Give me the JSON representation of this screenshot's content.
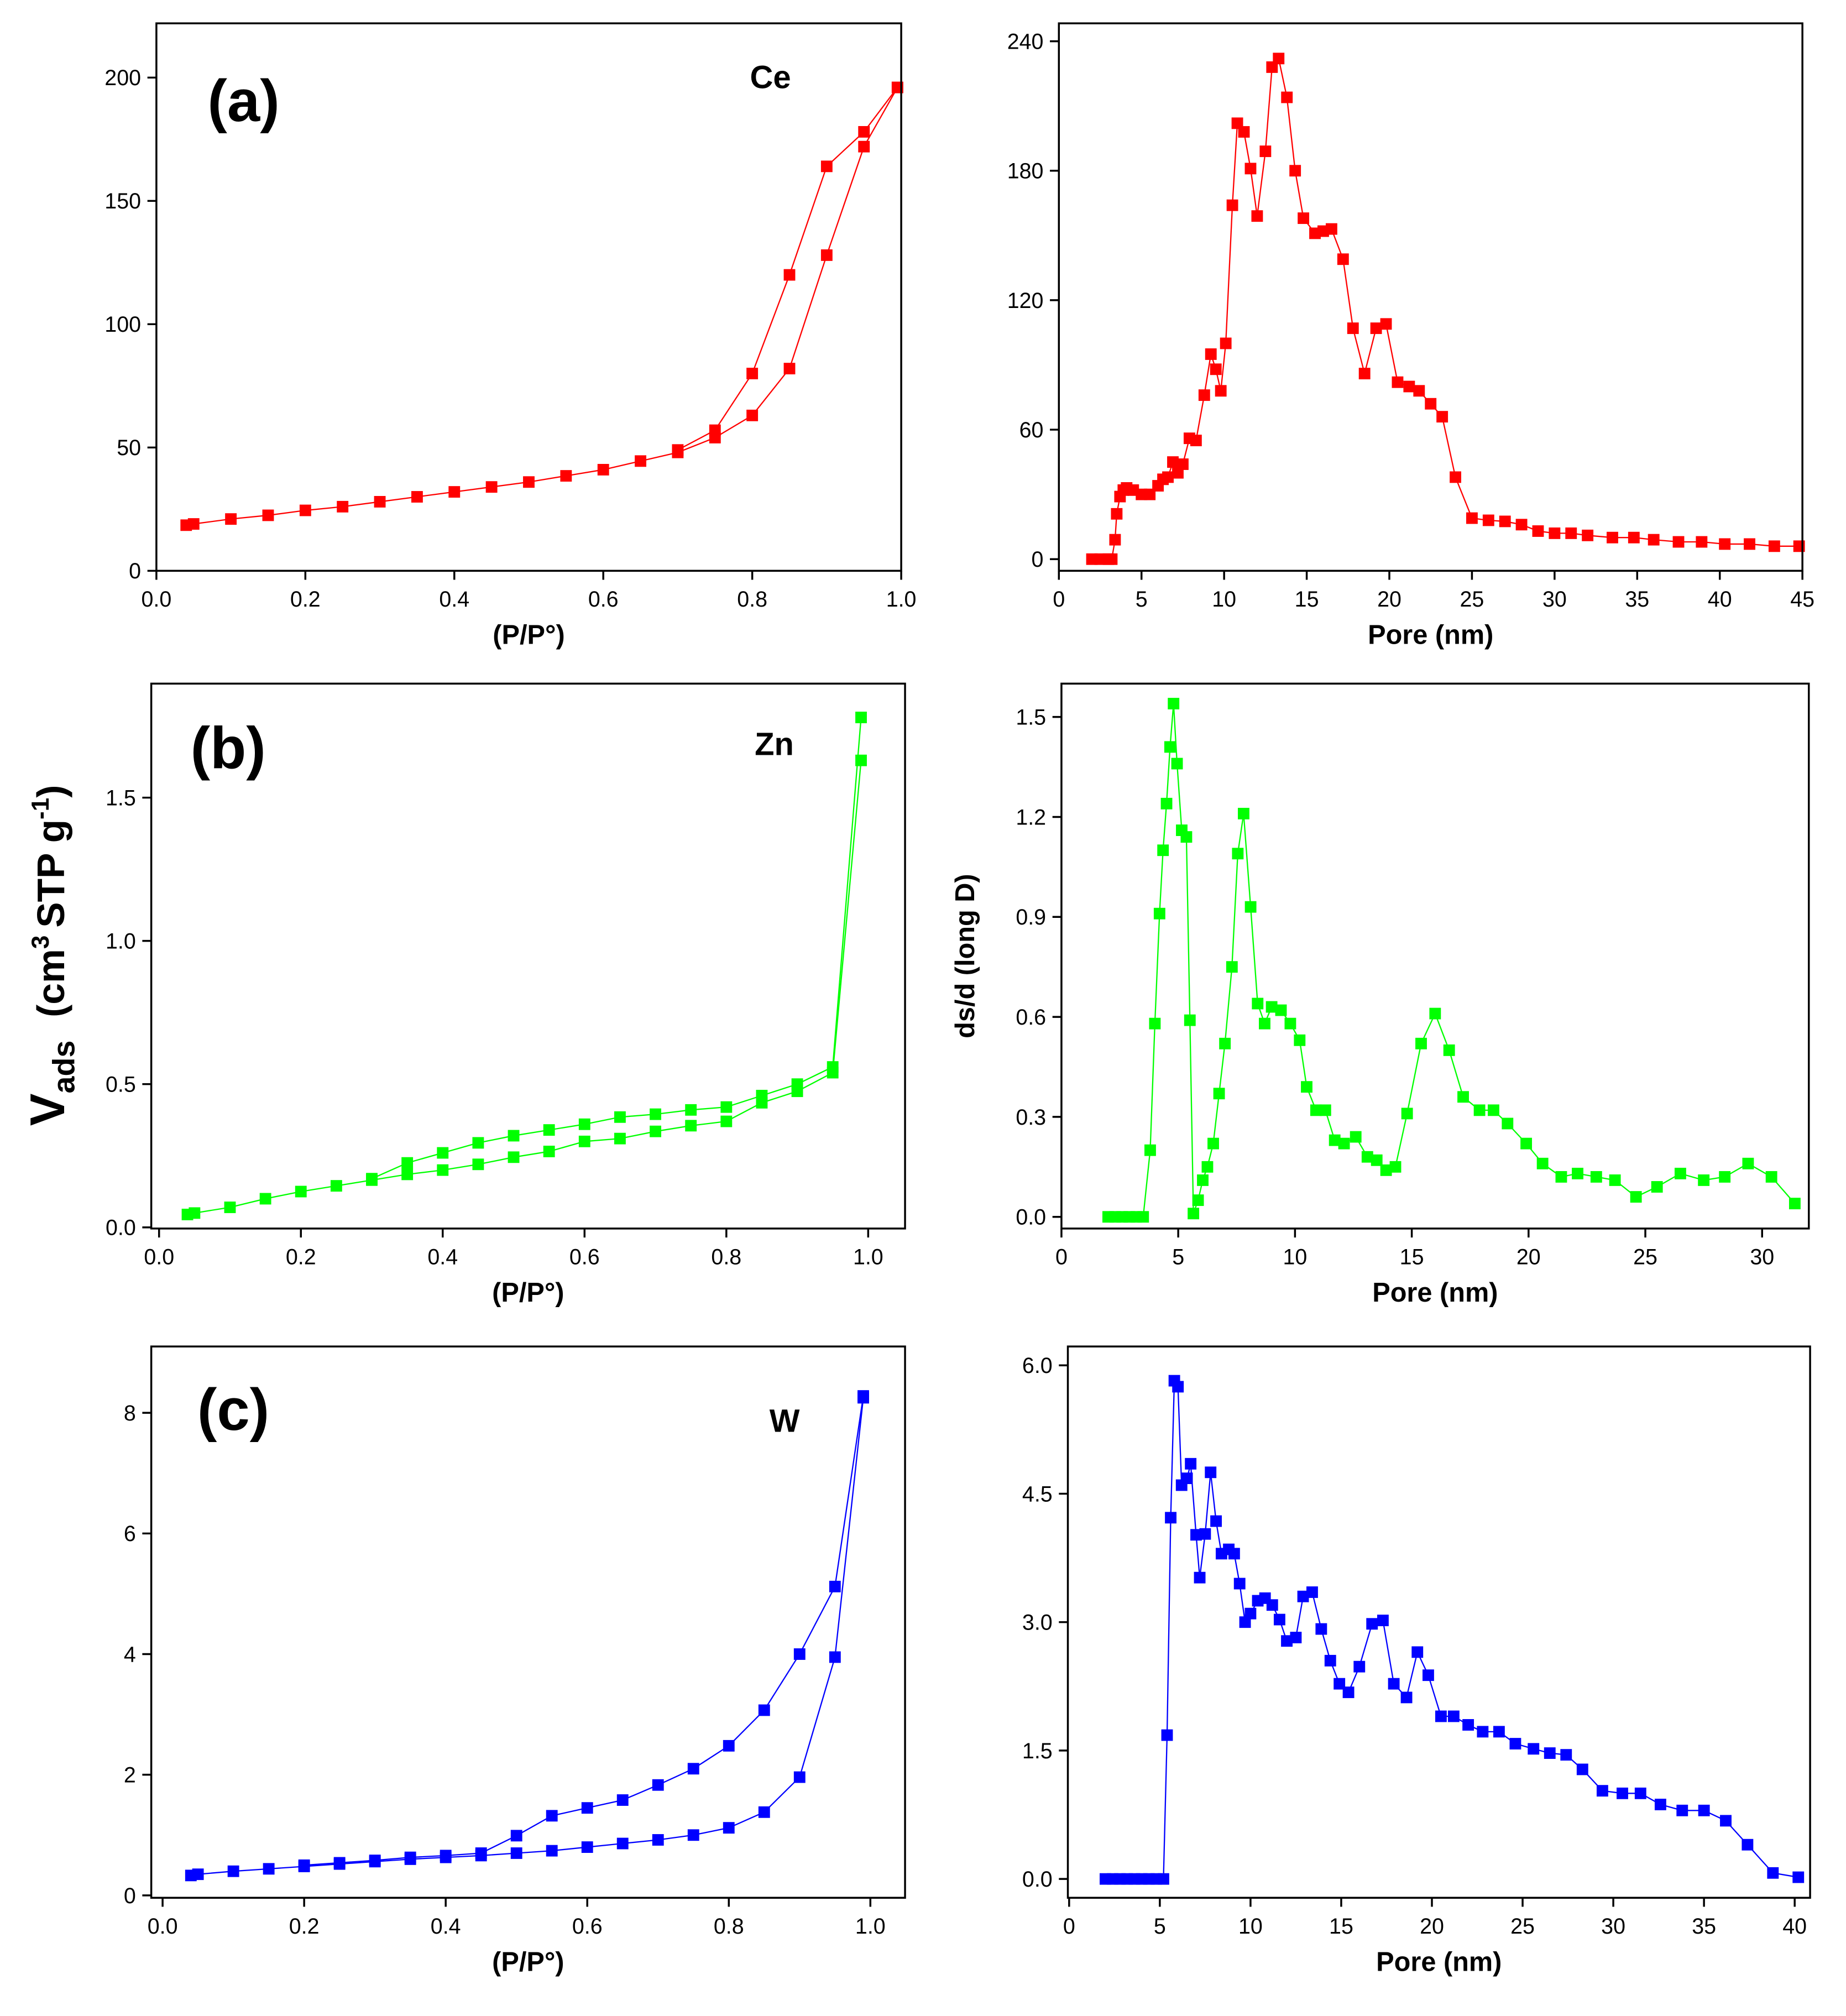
{
  "chart_data": [
    {
      "type": "line",
      "xlabel": "(P/P°)",
      "annotations": [
        "(a)",
        "Ce"
      ],
      "xlim": [
        0,
        1
      ],
      "ylim": [
        0,
        222
      ],
      "xticks": [
        {
          "value": 0,
          "label": "0.0"
        },
        0.2,
        0.4,
        0.6,
        0.8,
        {
          "value": 1,
          "label": "1.0"
        }
      ],
      "yticks": [
        0,
        50,
        100,
        150,
        200
      ],
      "series": [
        {
          "color": "#ff0000",
          "x": [
            0.04,
            0.05,
            0.1,
            0.15,
            0.2,
            0.25,
            0.3,
            0.35,
            0.4,
            0.45,
            0.5,
            0.55,
            0.6,
            0.65,
            0.7,
            0.75,
            0.8,
            0.85,
            0.9,
            0.95,
            0.995
          ],
          "values": [
            18.5,
            19,
            21,
            22.5,
            24.5,
            26,
            28,
            30,
            32,
            34,
            36,
            38.5,
            41,
            44.5,
            48,
            54,
            63,
            82,
            128,
            172,
            196
          ]
        },
        {
          "color": "#ff0000",
          "x": [
            0.995,
            0.95,
            0.9,
            0.85,
            0.8,
            0.75,
            0.7
          ],
          "values": [
            196,
            178,
            164,
            120,
            80,
            57,
            49
          ]
        }
      ]
    },
    {
      "type": "line",
      "xlabel": "Pore (nm)",
      "annotations": [],
      "xlim": [
        0,
        45
      ],
      "ylim": [
        -5.4,
        248.3
      ],
      "xticks": [
        0,
        5,
        10,
        15,
        20,
        25,
        30,
        35,
        40,
        45
      ],
      "yticks": [
        0,
        60,
        120,
        180,
        240
      ],
      "series": [
        {
          "color": "#ff0000",
          "x": [
            2,
            2.5,
            3,
            3.2,
            3.4,
            3.5,
            3.7,
            3.9,
            4.1,
            4.5,
            5,
            5.5,
            6,
            6.3,
            6.6,
            6.9,
            7.2,
            7.5,
            7.9,
            8.3,
            8.8,
            9.2,
            9.5,
            9.8,
            10.1,
            10.5,
            10.8,
            11.2,
            11.6,
            12.0,
            12.5,
            12.9,
            13.3,
            13.8,
            14.3,
            14.8,
            15.5,
            16.0,
            16.5,
            17.2,
            17.8,
            18.5,
            19.2,
            19.8,
            20.5,
            21.2,
            21.8,
            22.5,
            23.2,
            24.0,
            25.0,
            26.0,
            27.0,
            28.0,
            29.0,
            30.0,
            31.0,
            32.0,
            33.5,
            34.8,
            36.0,
            37.5,
            38.9,
            40.3,
            41.8,
            43.3,
            44.8
          ],
          "values": [
            0,
            0,
            0,
            0,
            9,
            21,
            29,
            32,
            33,
            32,
            30,
            30,
            34,
            37,
            38,
            45,
            40,
            44,
            56,
            55,
            76,
            95,
            88,
            78,
            100,
            164,
            202,
            198,
            181,
            159,
            189,
            228,
            232,
            214,
            180,
            158,
            151,
            152,
            153,
            139,
            107,
            86,
            107,
            109,
            82,
            80,
            78,
            72,
            66,
            38,
            19,
            18,
            17.5,
            16,
            13,
            12,
            12,
            11,
            10,
            10,
            9,
            8,
            8,
            7,
            7,
            6,
            6
          ]
        }
      ]
    },
    {
      "type": "line",
      "xlabel": "(P/P°)",
      "ylabel": [
        "V",
        "ads",
        "(cm",
        "3",
        "STP g",
        "-1",
        ")"
      ],
      "annotations": [
        "(b)",
        "Zn"
      ],
      "xlim": [
        -0.011,
        1.052
      ],
      "ylim": [
        -0.004,
        1.898
      ],
      "xticks": [
        {
          "value": 0,
          "label": "0.0"
        },
        0.2,
        0.4,
        0.6,
        0.8,
        {
          "value": 1,
          "label": "1.0"
        }
      ],
      "yticks": [
        {
          "value": 0,
          "label": "0.0"
        },
        0.5,
        {
          "value": 1,
          "label": "1.0"
        },
        1.5
      ],
      "series": [
        {
          "color": "#00ff00",
          "x": [
            0.04,
            0.05,
            0.1,
            0.15,
            0.2,
            0.25,
            0.3,
            0.35,
            0.4,
            0.45,
            0.5,
            0.55,
            0.6,
            0.65,
            0.7,
            0.75,
            0.8,
            0.85,
            0.9,
            0.95,
            0.99
          ],
          "values": [
            0.045,
            0.05,
            0.07,
            0.1,
            0.125,
            0.145,
            0.165,
            0.185,
            0.2,
            0.22,
            0.245,
            0.265,
            0.3,
            0.31,
            0.335,
            0.355,
            0.37,
            0.435,
            0.475,
            0.54,
            1.63
          ]
        },
        {
          "color": "#00ff00",
          "x": [
            0.99,
            0.95,
            0.9,
            0.85,
            0.8,
            0.75,
            0.7,
            0.65,
            0.6,
            0.55,
            0.5,
            0.45,
            0.4,
            0.35,
            0.3
          ],
          "values": [
            1.78,
            0.56,
            0.5,
            0.46,
            0.42,
            0.41,
            0.395,
            0.385,
            0.36,
            0.34,
            0.32,
            0.295,
            0.26,
            0.225,
            0.17
          ]
        }
      ]
    },
    {
      "type": "line",
      "xlabel": "Pore (nm)",
      "ylabel_text": "ds/d (long D)",
      "annotations": [],
      "xlim": [
        0,
        32
      ],
      "ylim": [
        -0.035,
        1.6
      ],
      "xticks": [
        0,
        5,
        10,
        15,
        20,
        25,
        30
      ],
      "yticks": [
        {
          "value": 0,
          "label": "0.0"
        },
        0.3,
        0.6,
        0.9,
        1.2,
        1.5
      ],
      "series": [
        {
          "color": "#00ff00",
          "x": [
            2,
            2.3,
            2.6,
            2.9,
            3.2,
            3.5,
            3.8,
            4.0,
            4.2,
            4.35,
            4.5,
            4.65,
            4.8,
            4.95,
            5.15,
            5.35,
            5.5,
            5.65,
            5.85,
            6.05,
            6.25,
            6.5,
            6.75,
            7.0,
            7.3,
            7.55,
            7.8,
            8.1,
            8.4,
            8.7,
            9.0,
            9.4,
            9.8,
            10.2,
            10.5,
            10.9,
            11.3,
            11.7,
            12.1,
            12.6,
            13.1,
            13.5,
            13.9,
            14.3,
            14.8,
            15.4,
            16.0,
            16.6,
            17.2,
            17.9,
            18.5,
            19.1,
            19.9,
            20.6,
            21.4,
            22.1,
            22.9,
            23.7,
            24.6,
            25.5,
            26.5,
            27.5,
            28.4,
            29.4,
            30.4,
            31.4
          ],
          "values": [
            0,
            0,
            0,
            0,
            0,
            0,
            0.2,
            0.58,
            0.91,
            1.1,
            1.24,
            1.41,
            1.54,
            1.36,
            1.16,
            1.14,
            0.59,
            0.01,
            0.05,
            0.11,
            0.15,
            0.22,
            0.37,
            0.52,
            0.75,
            1.09,
            1.21,
            0.93,
            0.64,
            0.58,
            0.63,
            0.62,
            0.58,
            0.53,
            0.39,
            0.32,
            0.32,
            0.23,
            0.22,
            0.24,
            0.18,
            0.17,
            0.14,
            0.15,
            0.31,
            0.52,
            0.61,
            0.5,
            0.36,
            0.32,
            0.32,
            0.28,
            0.22,
            0.16,
            0.12,
            0.13,
            0.12,
            0.11,
            0.06,
            0.09,
            0.13,
            0.11,
            0.12,
            0.16,
            0.12,
            0.04
          ]
        }
      ]
    },
    {
      "type": "line",
      "xlabel": "(P/P°)",
      "annotations": [
        "(c)",
        "W"
      ],
      "xlim": [
        -0.016,
        1.049
      ],
      "ylim": [
        -0.04,
        9.1
      ],
      "xticks": [
        {
          "value": 0,
          "label": "0.0"
        },
        0.2,
        0.4,
        0.6,
        0.8,
        {
          "value": 1,
          "label": "1.0"
        }
      ],
      "yticks": [
        0,
        2,
        4,
        6,
        8
      ],
      "series": [
        {
          "color": "#0000ff",
          "x": [
            0.04,
            0.05,
            0.1,
            0.15,
            0.2,
            0.25,
            0.3,
            0.35,
            0.4,
            0.45,
            0.5,
            0.55,
            0.6,
            0.65,
            0.7,
            0.75,
            0.8,
            0.85,
            0.9,
            0.95,
            0.99
          ],
          "values": [
            0.33,
            0.35,
            0.4,
            0.44,
            0.48,
            0.52,
            0.56,
            0.6,
            0.63,
            0.66,
            0.7,
            0.74,
            0.8,
            0.86,
            0.92,
            1.0,
            1.12,
            1.38,
            1.96,
            3.95,
            8.25
          ]
        },
        {
          "color": "#0000ff",
          "x": [
            0.99,
            0.95,
            0.9,
            0.85,
            0.8,
            0.75,
            0.7,
            0.65,
            0.6,
            0.55,
            0.5,
            0.45,
            0.4,
            0.35,
            0.3,
            0.25,
            0.2
          ],
          "values": [
            8.28,
            5.12,
            4.0,
            3.07,
            2.48,
            2.1,
            1.83,
            1.58,
            1.45,
            1.32,
            0.99,
            0.7,
            0.66,
            0.63,
            0.58,
            0.54,
            0.5
          ]
        }
      ]
    },
    {
      "type": "line",
      "xlabel": "Pore (nm)",
      "annotations": [],
      "xlim": [
        -0.07,
        40.85
      ],
      "ylim": [
        -0.22,
        6.22
      ],
      "xticks": [
        0,
        5,
        10,
        15,
        20,
        25,
        30,
        35,
        40
      ],
      "yticks": [
        {
          "value": 0,
          "label": "0.0"
        },
        1.5,
        {
          "value": 3,
          "label": "3.0"
        },
        4.5,
        {
          "value": 6,
          "label": "6.0"
        }
      ],
      "series": [
        {
          "color": "#0000ff",
          "x": [
            2,
            2.4,
            2.8,
            3.2,
            3.6,
            4,
            4.4,
            4.8,
            5.2,
            5.4,
            5.6,
            5.8,
            6.0,
            6.2,
            6.5,
            6.7,
            7.0,
            7.2,
            7.5,
            7.8,
            8.1,
            8.4,
            8.8,
            9.1,
            9.4,
            9.7,
            10.0,
            10.4,
            10.8,
            11.2,
            11.6,
            12.0,
            12.5,
            12.9,
            13.4,
            13.9,
            14.4,
            14.9,
            15.4,
            16.0,
            16.7,
            17.3,
            17.9,
            18.6,
            19.2,
            19.8,
            20.5,
            21.2,
            22.0,
            22.8,
            23.7,
            24.6,
            25.6,
            26.5,
            27.4,
            28.3,
            29.4,
            30.5,
            31.5,
            32.6,
            33.8,
            35.0,
            36.2,
            37.4,
            38.8,
            40.2
          ],
          "values": [
            0,
            0,
            0,
            0,
            0,
            0,
            0,
            0,
            0,
            1.68,
            4.22,
            5.82,
            5.75,
            4.6,
            4.68,
            4.85,
            4.02,
            3.52,
            4.03,
            4.75,
            4.18,
            3.8,
            3.85,
            3.8,
            3.45,
            3.0,
            3.1,
            3.25,
            3.28,
            3.2,
            3.03,
            2.78,
            2.82,
            3.3,
            3.35,
            2.92,
            2.55,
            2.28,
            2.18,
            2.48,
            2.98,
            3.02,
            2.28,
            2.12,
            2.65,
            2.38,
            1.9,
            1.9,
            1.8,
            1.72,
            1.72,
            1.58,
            1.52,
            1.47,
            1.45,
            1.28,
            1.03,
            1.0,
            1.0,
            0.87,
            0.8,
            0.8,
            0.68,
            0.4,
            0.07,
            0.02
          ]
        }
      ]
    }
  ]
}
